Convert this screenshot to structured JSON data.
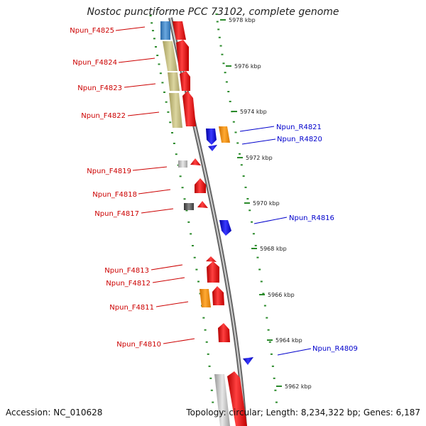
{
  "title": "Nostoc punctiforme PCC 73102, complete genome",
  "footer": {
    "accession": "Accession: NC_010628",
    "summary": "Topology: circular; Length: 8,234,322 bp; Genes: 6,187"
  },
  "colors": {
    "forward_label": "#cc0000",
    "reverse_label": "#0000cc",
    "tick": "#2a8a2a",
    "backbone": "#888888",
    "gene_red": "#ee1111",
    "gene_blue": "#1111ee",
    "gene_orange": "#ff8c00",
    "gene_olive": "#c8c080",
    "gene_steel": "#4a8ac8",
    "gene_grey": "#bbbbbb",
    "gene_dark": "#555555"
  },
  "scale_labels": [
    "5978 kbp",
    "5976 kbp",
    "5974 kbp",
    "5972 kbp",
    "5970 kbp",
    "5968 kbp",
    "5966 kbp",
    "5964 kbp",
    "5962 kbp"
  ],
  "forward_genes": [
    "Npun_F4825",
    "Npun_F4824",
    "Npun_F4823",
    "Npun_F4822",
    "Npun_F4819",
    "Npun_F4818",
    "Npun_F4817",
    "Npun_F4813",
    "Npun_F4812",
    "Npun_F4811",
    "Npun_F4810"
  ],
  "reverse_genes": [
    "Npun_R4821",
    "Npun_R4820",
    "Npun_R4816",
    "Npun_R4809"
  ]
}
